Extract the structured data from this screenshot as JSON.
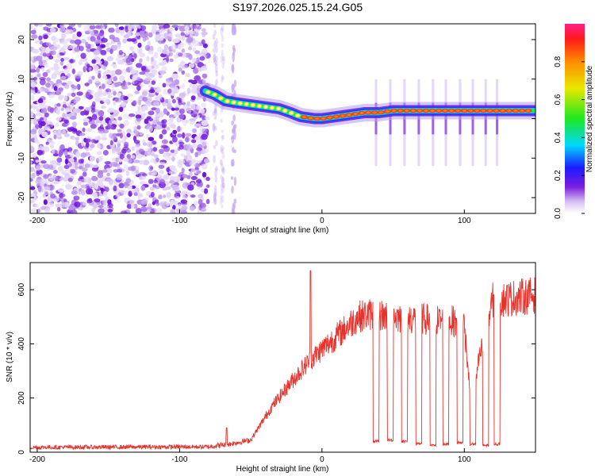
{
  "title": "S197.2026.025.15.24.G05",
  "chart_data": [
    {
      "type": "heatmap",
      "xlabel": "Height of straight line (km)",
      "ylabel": "Frequency (Hz)",
      "xlim": [
        -205,
        150
      ],
      "ylim": [
        -24,
        24
      ],
      "xticks": [
        -200,
        -100,
        0,
        100
      ],
      "yticks": [
        -20,
        -10,
        0,
        10,
        20
      ],
      "noise_region_x": [
        -205,
        -80
      ],
      "ridge": {
        "x": [
          -82,
          -75,
          -68,
          -60,
          -50,
          -40,
          -30,
          -22,
          -15,
          -5,
          0,
          10,
          20,
          30,
          40,
          50,
          60,
          70,
          80,
          90,
          100,
          110,
          120,
          130,
          140,
          150
        ],
        "freq": [
          7,
          6,
          4.5,
          4,
          3.5,
          3,
          2.5,
          1.5,
          0.5,
          0,
          0,
          0.5,
          1,
          1.5,
          1.5,
          2,
          2,
          2,
          2,
          2,
          2,
          2,
          2,
          2,
          2,
          2
        ]
      },
      "colorbar": {
        "label": "Normalized spectral amplitude",
        "ticks": [
          "0.0",
          "0.2",
          "0.4",
          "0.6",
          "0.8"
        ]
      }
    },
    {
      "type": "line",
      "xlabel": "Height of straight line (km)",
      "ylabel": "SNR (10 * v/v)",
      "xlim": [
        -205,
        150
      ],
      "ylim": [
        0,
        700
      ],
      "xticks": [
        -200,
        -100,
        0,
        100
      ],
      "yticks": [
        0,
        200,
        400,
        600
      ],
      "color": "#e8312b",
      "baseline_level": 18,
      "trend": {
        "x": [
          -205,
          -80,
          -65,
          -50,
          -35,
          -20,
          -10,
          0,
          15,
          25,
          35,
          50,
          100,
          105,
          110,
          120,
          150
        ],
        "snr": [
          18,
          20,
          30,
          45,
          170,
          270,
          330,
          380,
          450,
          500,
          510,
          500,
          480,
          160,
          330,
          560,
          580
        ]
      },
      "dropouts": {
        "x": [
          38,
          48,
          58,
          68,
          78,
          87,
          97,
          106,
          115,
          123
        ],
        "snr": [
          40,
          45,
          40,
          30,
          25,
          30,
          35,
          30,
          25,
          30
        ]
      },
      "spikes": {
        "x": [
          -8,
          -67
        ],
        "snr": [
          670,
          90
        ]
      }
    }
  ]
}
